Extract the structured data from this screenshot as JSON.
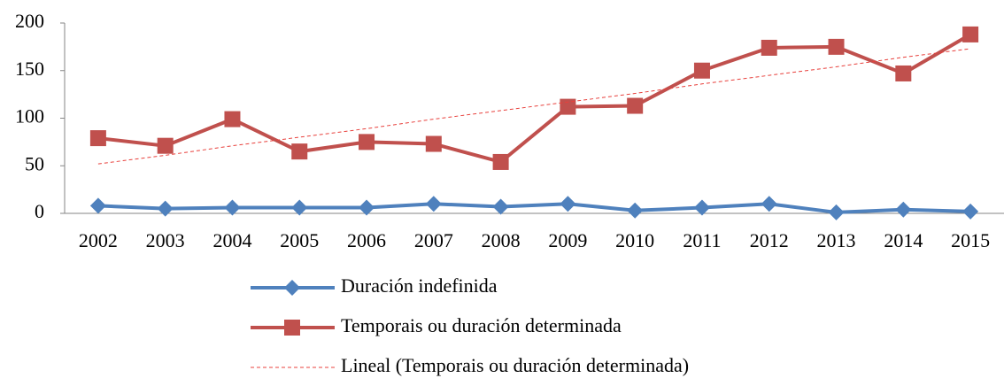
{
  "chart_data": {
    "type": "line",
    "categories": [
      "2002",
      "2003",
      "2004",
      "2005",
      "2006",
      "2007",
      "2008",
      "2009",
      "2010",
      "2011",
      "2012",
      "2013",
      "2014",
      "2015"
    ],
    "series": [
      {
        "name": "Duración indefinida",
        "color": "#4f81bd",
        "marker": "diamond",
        "values": [
          8,
          5,
          6,
          6,
          6,
          10,
          7,
          10,
          3,
          6,
          10,
          1,
          4,
          2
        ]
      },
      {
        "name": "Temporais ou duración determinada",
        "color": "#c0504d",
        "marker": "square",
        "values": [
          79,
          71,
          99,
          65,
          75,
          73,
          54,
          112,
          113,
          150,
          174,
          175,
          147,
          188
        ]
      },
      {
        "name": "Lineal (Temporais ou duración determinada)",
        "color": "#e8403c",
        "style": "dashed",
        "values": [
          52,
          61,
          71,
          80,
          89,
          99,
          108,
          117,
          126,
          136,
          145,
          154,
          164,
          173
        ]
      }
    ],
    "ylim": [
      0,
      200
    ],
    "yticks": [
      0,
      50,
      100,
      150,
      200
    ],
    "grid": false,
    "legend": "bottom"
  }
}
